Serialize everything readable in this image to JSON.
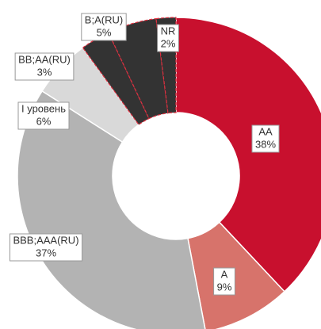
{
  "chart_data": {
    "type": "donut",
    "categories": [
      "AA",
      "A",
      "BBB;AAA(RU)",
      "I уровень",
      "BB;AA(RU)",
      "B;A(RU)",
      "NR"
    ],
    "values": [
      38,
      9,
      37,
      6,
      3,
      5,
      2
    ],
    "value_labels": [
      "38%",
      "9%",
      "37%",
      "6%",
      "3%",
      "5%",
      "2%"
    ],
    "colors": [
      "#c8102e",
      "#d7736b",
      "#b3b3b3",
      "#d9d9d9",
      "#333333",
      "#333333",
      "#333333"
    ]
  }
}
